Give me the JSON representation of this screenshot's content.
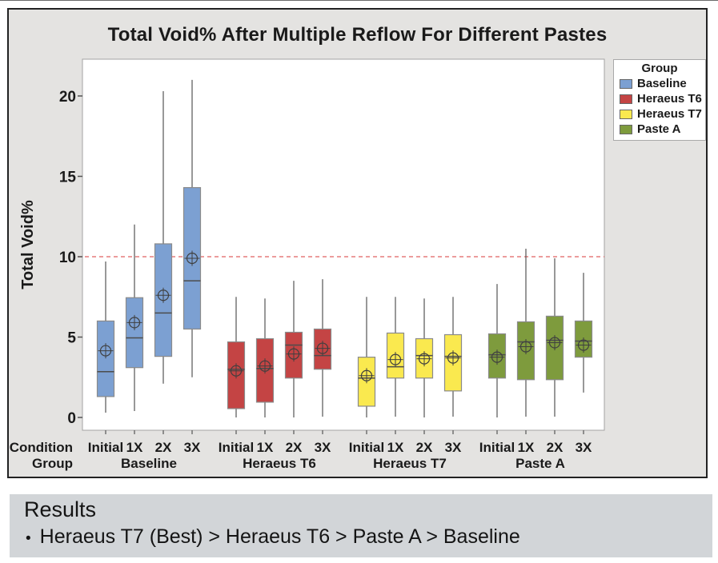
{
  "chart_data": {
    "type": "boxplot",
    "title": "Total Void% After Multiple Reflow For Different Pastes",
    "ylabel": "Total Void%",
    "yticks": [
      0,
      5,
      10,
      15,
      20
    ],
    "ylim": [
      -0.8,
      22.3
    ],
    "grid": "off",
    "legend": {
      "title": "Group",
      "position": "right"
    },
    "reference_line": {
      "value": 10,
      "color": "#E06060",
      "style": "dashed"
    },
    "x_axis_rows": [
      "Condition",
      "Group"
    ],
    "groups": [
      {
        "name": "Baseline",
        "color": "#7CA0D2",
        "boxes": [
          {
            "condition": "Initial",
            "whislo": 0.3,
            "q1": 1.3,
            "med": 2.85,
            "q3": 6.0,
            "whishi": 9.7,
            "mean": 4.15
          },
          {
            "condition": "1X",
            "whislo": 0.4,
            "q1": 3.1,
            "med": 4.95,
            "q3": 7.45,
            "whishi": 12.0,
            "mean": 5.9
          },
          {
            "condition": "2X",
            "whislo": 2.1,
            "q1": 3.8,
            "med": 6.5,
            "q3": 10.8,
            "whishi": 20.3,
            "mean": 7.6
          },
          {
            "condition": "3X",
            "whislo": 2.5,
            "q1": 5.5,
            "med": 8.5,
            "q3": 14.3,
            "whishi": 21.0,
            "mean": 9.9
          }
        ]
      },
      {
        "name": "Heraeus T6",
        "color": "#C44444",
        "boxes": [
          {
            "condition": "Initial",
            "whislo": 0.0,
            "q1": 0.55,
            "med": 3.0,
            "q3": 4.7,
            "whishi": 7.5,
            "mean": 2.9
          },
          {
            "condition": "1X",
            "whislo": 0.0,
            "q1": 0.95,
            "med": 3.05,
            "q3": 4.9,
            "whishi": 7.4,
            "mean": 3.2
          },
          {
            "condition": "2X",
            "whislo": 0.0,
            "q1": 2.45,
            "med": 4.5,
            "q3": 5.3,
            "whishi": 8.5,
            "mean": 3.95
          },
          {
            "condition": "3X",
            "whislo": 0.05,
            "q1": 3.0,
            "med": 3.85,
            "q3": 5.5,
            "whishi": 8.6,
            "mean": 4.3
          }
        ]
      },
      {
        "name": "Heraeus T7",
        "color": "#FAE94F",
        "boxes": [
          {
            "condition": "Initial",
            "whislo": 0.0,
            "q1": 0.7,
            "med": 2.45,
            "q3": 3.75,
            "whishi": 7.5,
            "mean": 2.6
          },
          {
            "condition": "1X",
            "whislo": 0.05,
            "q1": 2.45,
            "med": 3.15,
            "q3": 5.25,
            "whishi": 7.5,
            "mean": 3.6
          },
          {
            "condition": "2X",
            "whislo": 0.0,
            "q1": 2.45,
            "med": 3.85,
            "q3": 4.9,
            "whishi": 7.4,
            "mean": 3.65
          },
          {
            "condition": "3X",
            "whislo": 0.05,
            "q1": 1.65,
            "med": 3.8,
            "q3": 5.15,
            "whishi": 7.5,
            "mean": 3.7
          }
        ]
      },
      {
        "name": "Paste A",
        "color": "#7E9B3D",
        "boxes": [
          {
            "condition": "Initial",
            "whislo": 0.0,
            "q1": 2.45,
            "med": 3.9,
            "q3": 5.2,
            "whishi": 8.3,
            "mean": 3.75
          },
          {
            "condition": "1X",
            "whislo": 0.05,
            "q1": 2.35,
            "med": 4.7,
            "q3": 5.95,
            "whishi": 10.5,
            "mean": 4.4
          },
          {
            "condition": "2X",
            "whislo": 0.05,
            "q1": 2.35,
            "med": 4.8,
            "q3": 6.3,
            "whishi": 9.9,
            "mean": 4.65
          },
          {
            "condition": "3X",
            "whislo": 1.55,
            "q1": 3.75,
            "med": 4.75,
            "q3": 6.0,
            "whishi": 9.0,
            "mean": 4.5
          }
        ]
      }
    ]
  },
  "results": {
    "heading": "Results",
    "bullet_icon": "•",
    "bullet": "Heraeus T7 (Best) > Heraeus T6 > Paste A > Baseline"
  },
  "colors": {
    "chart_panel_bg": "#E4E3E1",
    "results_panel_bg": "#D2D5D8",
    "plot_bg": "#FFFFFF",
    "plot_frame": "#A3A3A3",
    "whisker": "#555555",
    "box_border": "#8A8A8A",
    "median": "#4C4C4C",
    "mean_marker": "#3F3F3F",
    "text": "#1a1a1a"
  }
}
